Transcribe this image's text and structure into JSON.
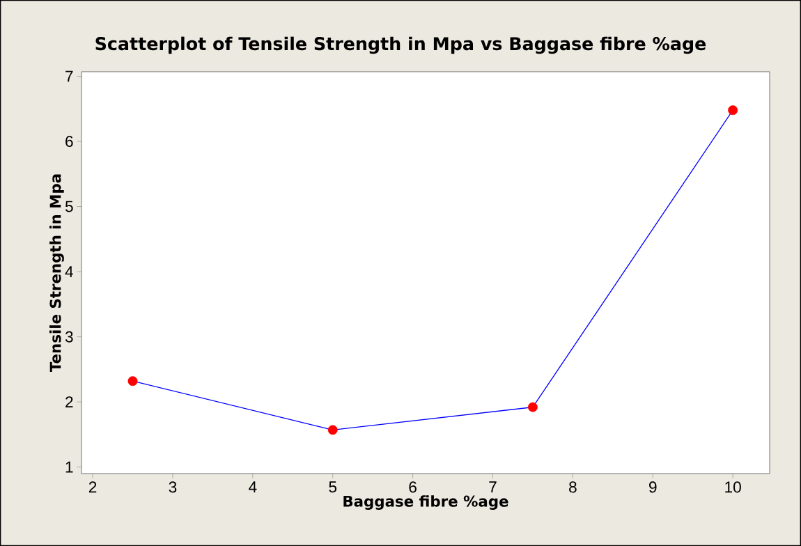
{
  "chart_data": {
    "type": "line",
    "title": "Scatterplot of Tensile Strength in Mpa vs Baggase fibre %age",
    "xlabel": "Baggase fibre %age",
    "ylabel": "Tensile Strength in Mpa",
    "x": [
      2.5,
      5,
      7.5,
      10
    ],
    "series": [
      {
        "color": "#0000ff",
        "colors": [
          "#ff0000",
          "#ff0000",
          "#ff0000",
          "#ff0000"
        ],
        "values": [
          2.32,
          1.57,
          1.92,
          6.48
        ]
      }
    ],
    "marker": "circle",
    "line_style": "solid",
    "xlim": [
      1.86,
      10.46
    ],
    "ylim": [
      0.9,
      7.07
    ],
    "xticks": [
      2,
      3,
      4,
      5,
      6,
      7,
      8,
      9,
      10
    ],
    "yticks": [
      1,
      2,
      3,
      4,
      5,
      6,
      7
    ],
    "grid": false
  }
}
